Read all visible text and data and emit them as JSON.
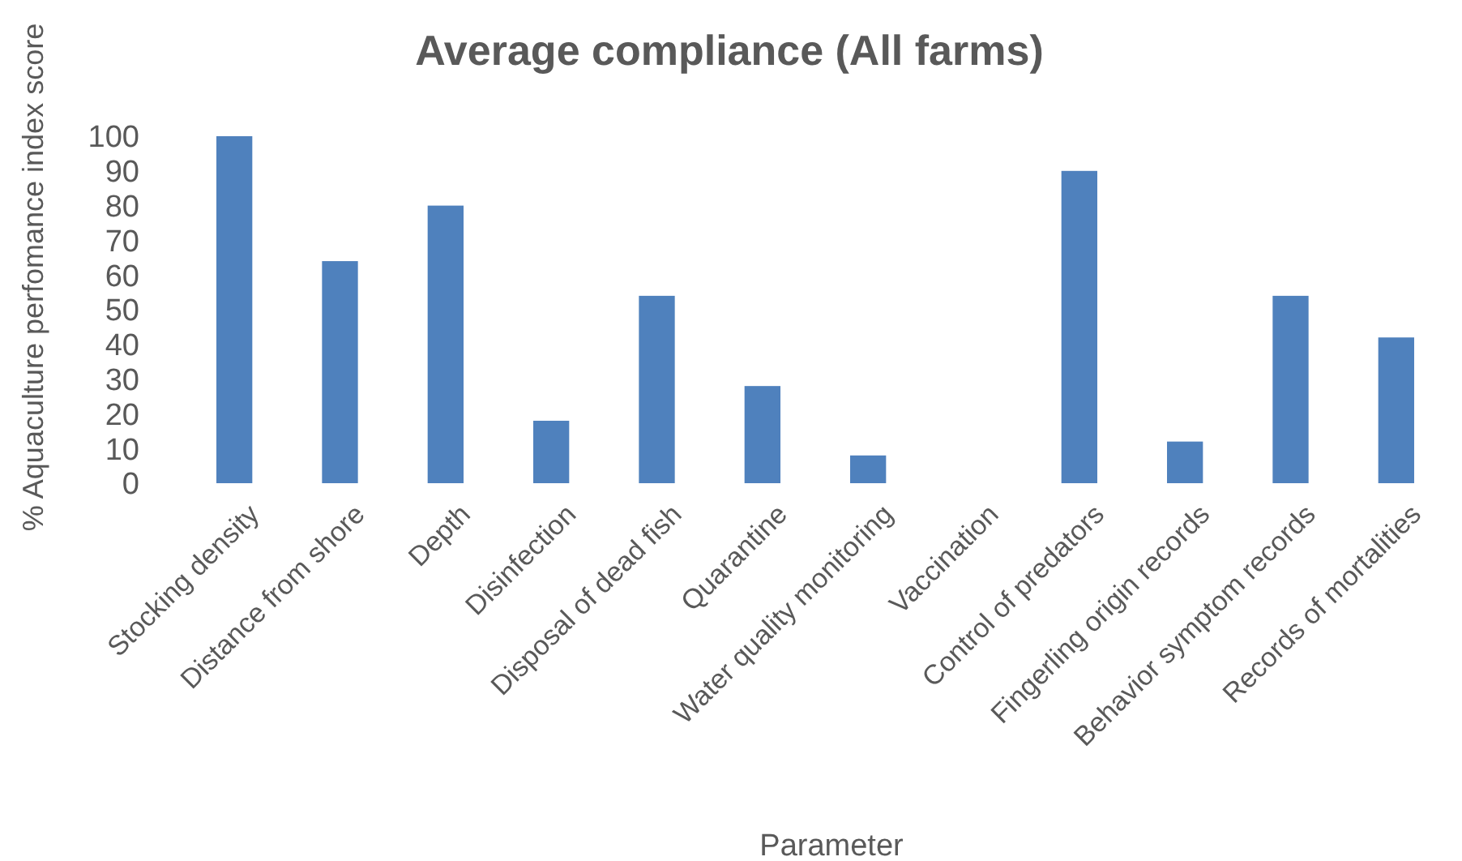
{
  "chart_data": {
    "type": "bar",
    "title": "Average compliance (All farms)",
    "xlabel": "Parameter",
    "ylabel": "% Aquaculture perfomance index score",
    "categories": [
      "Stocking density",
      "Distance from shore",
      "Depth",
      "Disinfection",
      "Disposal of dead fish",
      "Quarantine",
      "Water quality monitoring",
      "Vaccination",
      "Control of predators",
      "Fingerling origin records",
      "Behavior symptom records",
      "Records of mortalities"
    ],
    "values": [
      100,
      64,
      80,
      18,
      54,
      28,
      8,
      0,
      90,
      12,
      54,
      42
    ],
    "color": "#4f81bd",
    "ylim": [
      0,
      100
    ],
    "yticks": [
      0,
      10,
      20,
      30,
      40,
      50,
      60,
      70,
      80,
      90,
      100
    ],
    "grid": false
  }
}
